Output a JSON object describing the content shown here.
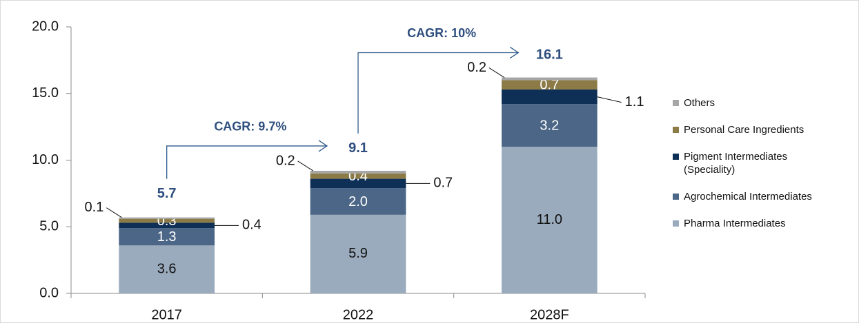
{
  "chart_data": {
    "type": "stacked_bar",
    "categories": [
      "2017",
      "2022",
      "2028F"
    ],
    "series": [
      {
        "name": "Pharma Intermediates",
        "color": "#9aabbd",
        "values": [
          3.6,
          5.9,
          11.0
        ],
        "value_labels": [
          "3.6",
          "5.9",
          "11.0"
        ]
      },
      {
        "name": "Agrochemical Intermediates",
        "color": "#4b6686",
        "values": [
          1.3,
          2.0,
          3.2
        ],
        "value_labels": [
          "1.3",
          "2.0",
          "3.2"
        ]
      },
      {
        "name": "Pigment Intermediates (Speciality)",
        "color": "#0e2f56",
        "values": [
          0.4,
          0.7,
          1.1
        ],
        "value_labels": [
          "0.4",
          "0.7",
          "1.1"
        ]
      },
      {
        "name": "Personal Care Ingredients",
        "color": "#8c7b46",
        "values": [
          0.3,
          0.4,
          0.7
        ],
        "value_labels": [
          "0.3",
          "0.4",
          "0.7"
        ]
      },
      {
        "name": "Others",
        "color": "#a6a6a6",
        "values": [
          0.1,
          0.2,
          0.2
        ],
        "value_labels": [
          "0.1",
          "0.2",
          "0.2"
        ]
      }
    ],
    "totals": [
      5.7,
      9.1,
      16.1
    ],
    "cagr": [
      "CAGR: 9.7%",
      "CAGR: 10%"
    ],
    "ylim": [
      0,
      20
    ],
    "yticks": [
      {
        "value": 0,
        "label": "0.0"
      },
      {
        "value": 5,
        "label": "5.0"
      },
      {
        "value": 10,
        "label": "10.0"
      },
      {
        "value": 15,
        "label": "15.0"
      },
      {
        "value": 20,
        "label": "20.0"
      }
    ],
    "legend": "right"
  }
}
